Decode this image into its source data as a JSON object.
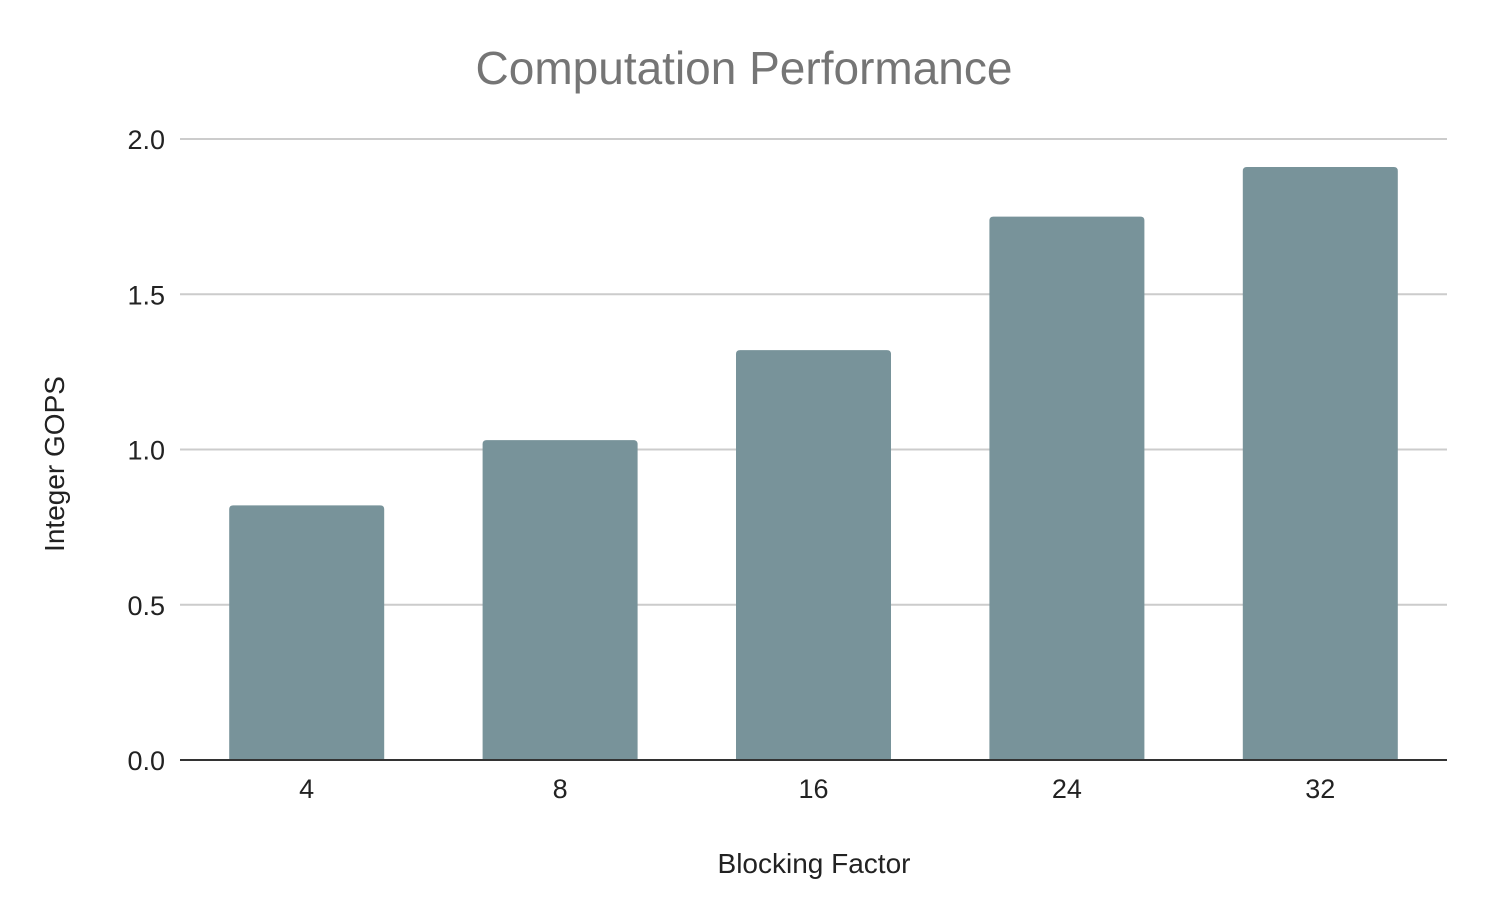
{
  "chart_data": {
    "type": "bar",
    "title": "Computation Performance",
    "xlabel": "Blocking Factor",
    "ylabel": "Integer GOPS",
    "categories": [
      "4",
      "8",
      "16",
      "24",
      "32"
    ],
    "values": [
      0.82,
      1.03,
      1.32,
      1.75,
      1.91
    ],
    "ylim": [
      0,
      2.0
    ],
    "yticks": [
      "0.0",
      "0.5",
      "1.0",
      "1.5",
      "2.0"
    ],
    "grid": true,
    "legend": "none",
    "bar_color": "#78939a"
  }
}
